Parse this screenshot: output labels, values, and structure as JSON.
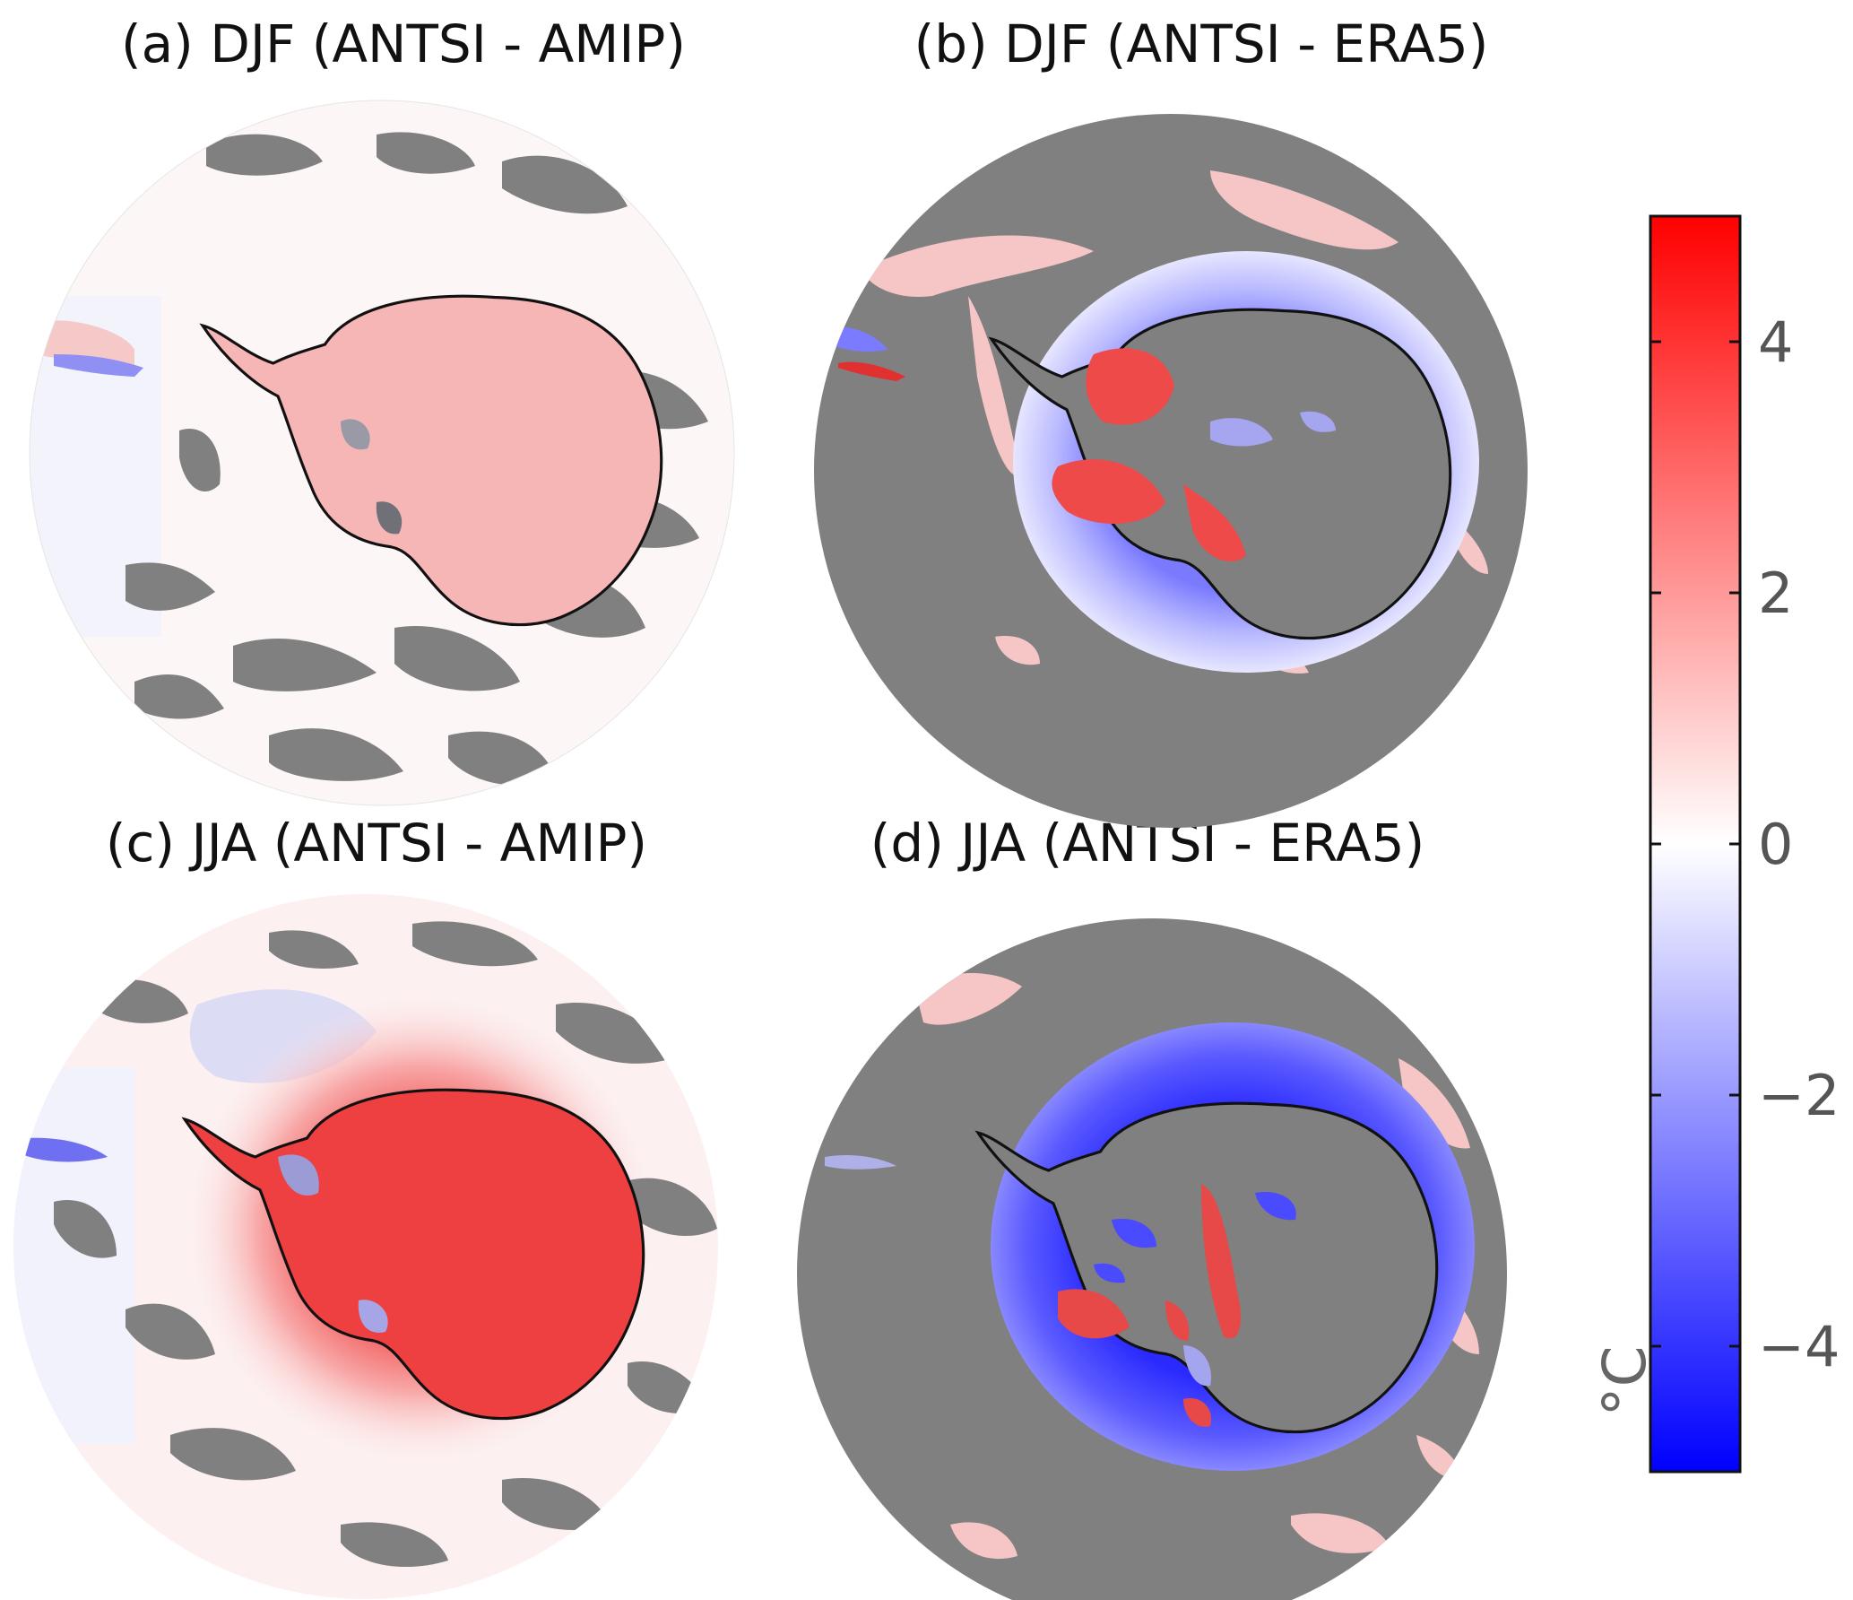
{
  "panels": [
    {
      "id": "a",
      "title": "(a) DJF (ANTSI - AMIP)",
      "season": "DJF",
      "comparison": "ANTSI - AMIP",
      "background": "near-zero (white/light red)",
      "antarctica_anomaly": "warm (light red)"
    },
    {
      "id": "b",
      "title": "(b) DJF (ANTSI - ERA5)",
      "season": "DJF",
      "comparison": "ANTSI - ERA5",
      "background": "mostly masked (grey)",
      "antarctica_anomaly": "mixed warm/cold, cold coastal ring"
    },
    {
      "id": "c",
      "title": "(c) JJA (ANTSI - AMIP)",
      "season": "JJA",
      "comparison": "ANTSI - AMIP",
      "background": "near-zero with warm halo",
      "antarctica_anomaly": "strongly warm (red)"
    },
    {
      "id": "d",
      "title": "(d) JJA (ANTSI - ERA5)",
      "season": "JJA",
      "comparison": "ANTSI - ERA5",
      "background": "mostly masked (grey)",
      "antarctica_anomaly": "mixed, strong cold ring"
    }
  ],
  "colorbar": {
    "unit": "°C",
    "min": -5,
    "max": 5,
    "ticks": [
      {
        "value": 4,
        "label": "4"
      },
      {
        "value": 2,
        "label": "2"
      },
      {
        "value": 0,
        "label": "0"
      },
      {
        "value": -2,
        "label": "−2"
      },
      {
        "value": -4,
        "label": "−4"
      }
    ],
    "colors": {
      "low": "#0000ff",
      "mid": "#ffffff",
      "high": "#ff0000"
    }
  },
  "colors": {
    "masked": "#808080",
    "coastline": "#111111"
  }
}
